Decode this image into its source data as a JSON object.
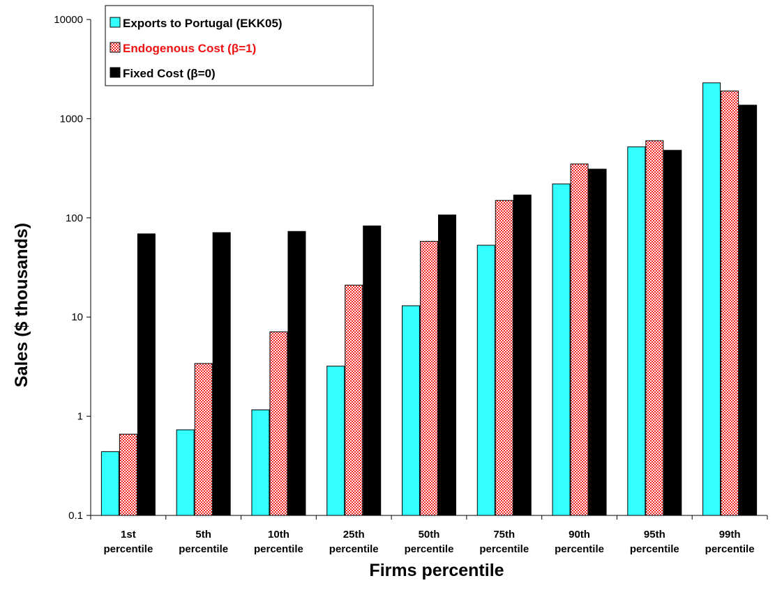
{
  "chart_data": {
    "type": "bar",
    "xlabel": "Firms percentile",
    "ylabel": "Sales ($ thousands)",
    "yscale": "log",
    "ylim": [
      0.1,
      10000
    ],
    "yticks": [
      "0.1",
      "1",
      "10",
      "100",
      "1000",
      "10000"
    ],
    "categories": [
      [
        "1st",
        "percentile"
      ],
      [
        "5th",
        "percentile"
      ],
      [
        "10th",
        "percentile"
      ],
      [
        "25th",
        "percentile"
      ],
      [
        "50th",
        "percentile"
      ],
      [
        "75th",
        "percentile"
      ],
      [
        "90th",
        "percentile"
      ],
      [
        "95th",
        "percentile"
      ],
      [
        "99th",
        "percentile"
      ]
    ],
    "series": [
      {
        "name": "Exports to Portugal (EKK05)",
        "color": "#33ffff",
        "pattern": "solid",
        "values": [
          0.44,
          0.73,
          1.16,
          3.2,
          13,
          53,
          220,
          520,
          2300
        ]
      },
      {
        "name": "Endogenous Cost (β=1)",
        "color": "#ff5050",
        "pattern": "checkered",
        "values": [
          0.66,
          3.4,
          7.1,
          21,
          58,
          150,
          350,
          600,
          1900
        ]
      },
      {
        "name": "Fixed Cost (β=0)",
        "color": "#000000",
        "pattern": "solid",
        "values": [
          69,
          71,
          73,
          83,
          107,
          170,
          310,
          480,
          1370
        ]
      }
    ],
    "legend": {
      "position": "top-left"
    },
    "grid": false
  }
}
